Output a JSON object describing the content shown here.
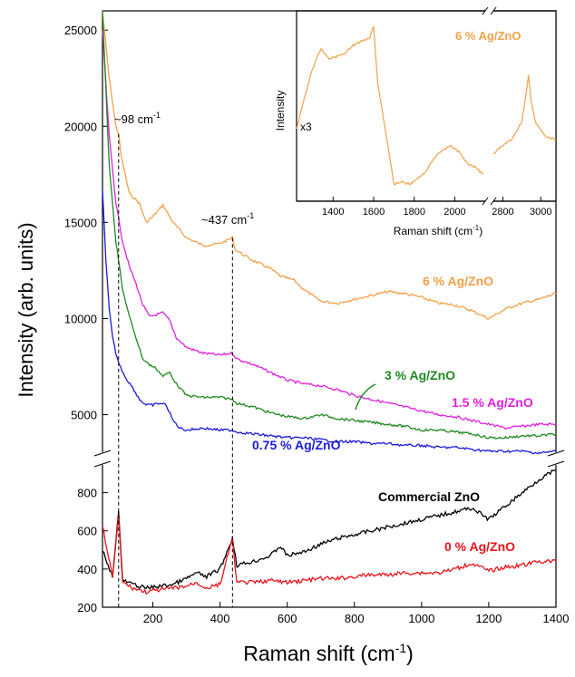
{
  "chart_data": [
    {
      "type": "line",
      "xlabel_main": "Raman shift (cm",
      "xlabel_sup": "-1",
      "xlabel_tail": ")",
      "ylabel": "Intensity (arb. units)",
      "xlim": [
        50,
        1400
      ],
      "x_ticks": [
        200,
        400,
        600,
        800,
        1000,
        1200,
        1400
      ],
      "y_axis_break": true,
      "ylim_upper": [
        3000,
        26000
      ],
      "y_ticks_upper": [
        5000,
        10000,
        15000,
        20000,
        25000
      ],
      "ylim_lower": [
        200,
        950
      ],
      "y_ticks_lower": [
        200,
        400,
        600,
        800
      ],
      "x_tick_labels": [
        "200",
        "400",
        "600",
        "800",
        "1000",
        "1200",
        "1400"
      ],
      "y_tick_labels_upper": [
        "5000",
        "10000",
        "15000",
        "20000",
        "25000"
      ],
      "y_tick_labels_lower": [
        "200",
        "400",
        "600",
        "800"
      ],
      "annotations": [
        {
          "text": "~98 cm",
          "sup": "-1",
          "x": 98
        },
        {
          "text": "~437 cm",
          "sup": "-1",
          "x": 437
        }
      ],
      "series": [
        {
          "name": "6 % Ag/ZnO",
          "color": "#f4a04a",
          "panel": "upper",
          "x": [
            50,
            70,
            90,
            98,
            105,
            130,
            160,
            180,
            200,
            230,
            260,
            300,
            350,
            400,
            437,
            445,
            470,
            500,
            550,
            580,
            620,
            650,
            700,
            750,
            800,
            850,
            900,
            950,
            1000,
            1050,
            1100,
            1150,
            1200,
            1250,
            1300,
            1350,
            1400
          ],
          "y": [
            26000,
            22500,
            20000,
            19600,
            18500,
            16500,
            16000,
            15000,
            15300,
            15900,
            15000,
            14200,
            13800,
            13900,
            14200,
            13600,
            13300,
            13000,
            12600,
            12200,
            12000,
            11500,
            10900,
            10800,
            11000,
            11200,
            11400,
            11300,
            11100,
            10800,
            10700,
            10400,
            10000,
            10500,
            10800,
            11000,
            11300
          ]
        },
        {
          "name": "1.5 % Ag/ZnO",
          "color": "#e020e0",
          "panel": "upper",
          "x": [
            50,
            70,
            90,
            110,
            130,
            150,
            170,
            190,
            210,
            230,
            250,
            270,
            300,
            350,
            400,
            437,
            450,
            500,
            550,
            600,
            650,
            700,
            750,
            800,
            850,
            900,
            950,
            1000,
            1050,
            1100,
            1150,
            1200,
            1250,
            1300,
            1350,
            1400
          ],
          "y": [
            25000,
            19500,
            16000,
            14000,
            12700,
            11800,
            10700,
            10100,
            10200,
            10300,
            9900,
            9000,
            8500,
            8200,
            8100,
            8200,
            7900,
            7600,
            7200,
            6800,
            6600,
            6500,
            6300,
            6000,
            5800,
            5600,
            5400,
            5200,
            5000,
            4900,
            4700,
            4500,
            4300,
            4400,
            4500,
            4500
          ]
        },
        {
          "name": "3 % Ag/ZnO",
          "color": "#1f8a1f",
          "panel": "upper",
          "x": [
            50,
            70,
            90,
            110,
            130,
            150,
            170,
            190,
            210,
            230,
            250,
            270,
            300,
            350,
            400,
            437,
            450,
            500,
            550,
            600,
            650,
            700,
            750,
            800,
            850,
            900,
            950,
            1000,
            1050,
            1100,
            1150,
            1200,
            1250,
            1300,
            1350,
            1400
          ],
          "y": [
            26000,
            18000,
            14000,
            11500,
            10100,
            9000,
            7900,
            7600,
            7400,
            7000,
            7200,
            6600,
            6000,
            5900,
            5900,
            5800,
            5600,
            5400,
            5100,
            4900,
            4800,
            5000,
            4800,
            4700,
            4600,
            4500,
            4400,
            4200,
            4200,
            4100,
            4000,
            3800,
            3800,
            3900,
            3900,
            4000
          ]
        },
        {
          "name": "0.75 % Ag/ZnO",
          "color": "#1a1adc",
          "panel": "upper",
          "x": [
            50,
            60,
            70,
            80,
            90,
            100,
            120,
            140,
            160,
            180,
            200,
            220,
            240,
            260,
            280,
            300,
            350,
            400,
            437,
            450,
            500,
            550,
            600,
            650,
            700,
            750,
            800,
            850,
            900,
            950,
            1000,
            1050,
            1100,
            1150,
            1200,
            1250,
            1300,
            1350,
            1400
          ],
          "y": [
            16700,
            13000,
            10500,
            9000,
            8200,
            7600,
            6900,
            6400,
            5800,
            5500,
            5500,
            5600,
            5500,
            4700,
            4300,
            4200,
            4300,
            4200,
            4200,
            4100,
            4000,
            3900,
            3800,
            3800,
            3700,
            3600,
            3600,
            3500,
            3500,
            3400,
            3400,
            3300,
            3300,
            3200,
            3100,
            3100,
            3100,
            3000,
            3100
          ]
        },
        {
          "name": "Commercial ZnO",
          "color": "#000000",
          "panel": "lower",
          "x": [
            50,
            80,
            98,
            110,
            140,
            180,
            220,
            260,
            300,
            330,
            360,
            400,
            437,
            450,
            500,
            550,
            580,
            600,
            650,
            700,
            750,
            800,
            850,
            900,
            950,
            1000,
            1050,
            1100,
            1150,
            1200,
            1250,
            1300,
            1350,
            1400
          ],
          "y": [
            500,
            360,
            700,
            340,
            320,
            300,
            310,
            320,
            350,
            380,
            360,
            400,
            560,
            420,
            440,
            470,
            520,
            470,
            490,
            530,
            560,
            580,
            600,
            620,
            640,
            660,
            680,
            700,
            720,
            660,
            730,
            800,
            870,
            920
          ]
        },
        {
          "name": "0 % Ag/ZnO",
          "color": "#e8141a",
          "panel": "lower",
          "x": [
            50,
            80,
            98,
            110,
            140,
            180,
            220,
            260,
            300,
            330,
            360,
            400,
            437,
            450,
            500,
            550,
            600,
            650,
            700,
            750,
            800,
            850,
            900,
            950,
            1000,
            1050,
            1100,
            1150,
            1200,
            1250,
            1300,
            1350,
            1400
          ],
          "y": [
            620,
            360,
            680,
            330,
            300,
            280,
            290,
            300,
            310,
            330,
            300,
            320,
            560,
            330,
            330,
            340,
            330,
            340,
            350,
            350,
            360,
            370,
            370,
            380,
            380,
            380,
            400,
            430,
            390,
            410,
            420,
            440,
            440
          ]
        }
      ]
    },
    {
      "type": "line",
      "title": "6 % Ag/ZnO",
      "xlabel_main": "Raman shift (cm",
      "xlabel_sup": "-1",
      "xlabel_tail": ")",
      "ylabel": "Intensity",
      "scale_note": "x3",
      "x_axis_break": true,
      "segment1_xlim": [
        1220,
        2150
      ],
      "segment1_ticks": [
        1400,
        1600,
        1800,
        2000
      ],
      "segment1_tick_labels": [
        "1400",
        "1600",
        "1800",
        "2000"
      ],
      "segment2_xlim": [
        2750,
        3080
      ],
      "segment2_ticks": [
        2800,
        3000
      ],
      "segment2_tick_labels": [
        "2800",
        "3000"
      ],
      "ylim": [
        0,
        1
      ],
      "series": [
        {
          "name": "6 % Ag/ZnO",
          "color": "#f4a04a",
          "x": [
            1220,
            1260,
            1300,
            1340,
            1380,
            1420,
            1460,
            1500,
            1540,
            1580,
            1600,
            1620,
            1660,
            1700,
            1740,
            1780,
            1820,
            1860,
            1900,
            1940,
            1980,
            2020,
            2060,
            2100,
            2140
          ],
          "y": [
            0.38,
            0.55,
            0.7,
            0.8,
            0.75,
            0.76,
            0.78,
            0.82,
            0.84,
            0.86,
            0.92,
            0.62,
            0.36,
            0.09,
            0.1,
            0.09,
            0.12,
            0.16,
            0.23,
            0.27,
            0.29,
            0.26,
            0.2,
            0.18,
            0.14
          ]
        },
        {
          "name": "6 % Ag/ZnO",
          "color": "#f4a04a",
          "x": [
            2750,
            2780,
            2810,
            2840,
            2870,
            2900,
            2920,
            2935,
            2950,
            2970,
            3000,
            3030,
            3060,
            3080
          ],
          "y": [
            0.25,
            0.28,
            0.3,
            0.32,
            0.36,
            0.42,
            0.55,
            0.66,
            0.52,
            0.42,
            0.37,
            0.34,
            0.33,
            0.32
          ]
        }
      ]
    }
  ]
}
